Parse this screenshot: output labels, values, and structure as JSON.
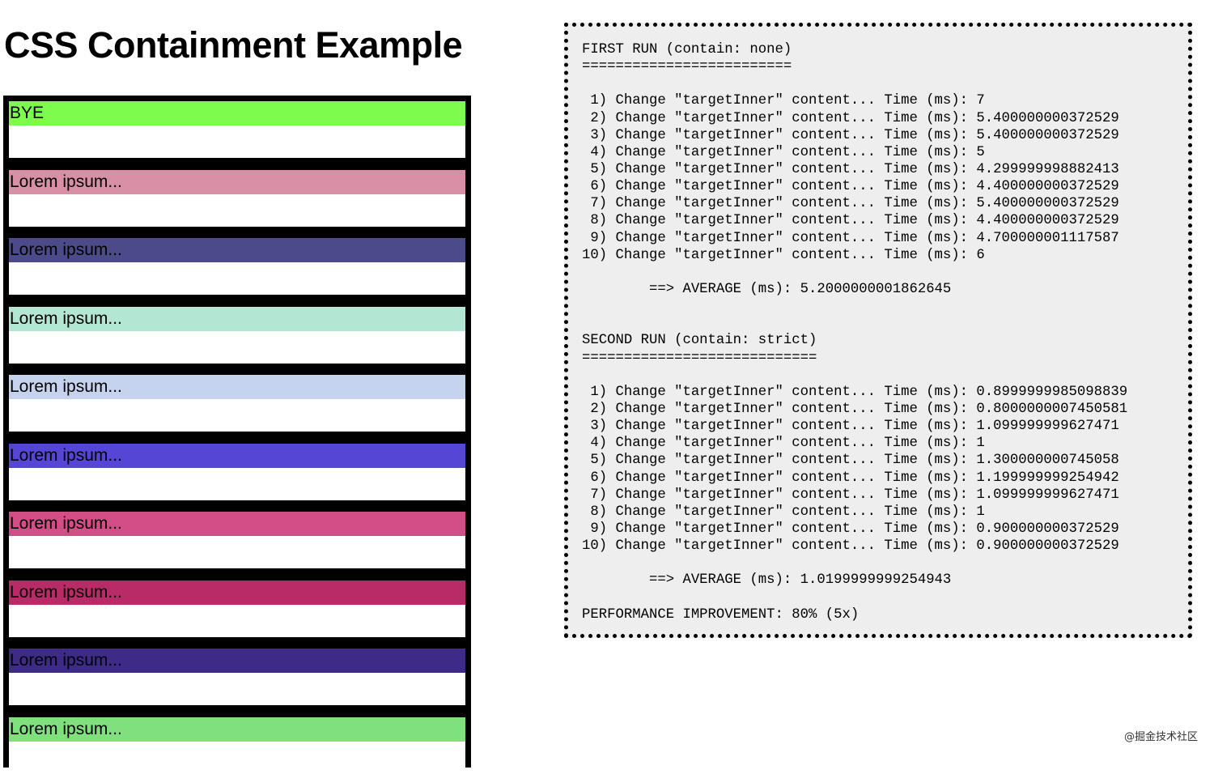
{
  "title": "CSS Containment Example",
  "items": [
    {
      "label": "BYE",
      "color": "#7cfc4c"
    },
    {
      "label": "Lorem ipsum...",
      "color": "#d98fa5"
    },
    {
      "label": "Lorem ipsum...",
      "color": "#4b4b8a"
    },
    {
      "label": "Lorem ipsum...",
      "color": "#b3e6d3"
    },
    {
      "label": "Lorem ipsum...",
      "color": "#c6d3ef"
    },
    {
      "label": "Lorem ipsum...",
      "color": "#5646d6"
    },
    {
      "label": "Lorem ipsum...",
      "color": "#d34d86"
    },
    {
      "label": "Lorem ipsum...",
      "color": "#b82b66"
    },
    {
      "label": "Lorem ipsum...",
      "color": "#3e2a87"
    },
    {
      "label": "Lorem ipsum...",
      "color": "#7fe07d"
    }
  ],
  "log": {
    "lines": [
      "FIRST RUN (contain: none)",
      "=========================",
      "",
      " 1) Change \"targetInner\" content... Time (ms): 7",
      " 2) Change \"targetInner\" content... Time (ms): 5.400000000372529",
      " 3) Change \"targetInner\" content... Time (ms): 5.400000000372529",
      " 4) Change \"targetInner\" content... Time (ms): 5",
      " 5) Change \"targetInner\" content... Time (ms): 4.299999998882413",
      " 6) Change \"targetInner\" content... Time (ms): 4.400000000372529",
      " 7) Change \"targetInner\" content... Time (ms): 5.400000000372529",
      " 8) Change \"targetInner\" content... Time (ms): 4.400000000372529",
      " 9) Change \"targetInner\" content... Time (ms): 4.700000001117587",
      "10) Change \"targetInner\" content... Time (ms): 6",
      "",
      "        ==> AVERAGE (ms): 5.2000000001862645",
      "",
      "",
      "SECOND RUN (contain: strict)",
      "============================",
      "",
      " 1) Change \"targetInner\" content... Time (ms): 0.8999999985098839",
      " 2) Change \"targetInner\" content... Time (ms): 0.8000000007450581",
      " 3) Change \"targetInner\" content... Time (ms): 1.099999999627471",
      " 4) Change \"targetInner\" content... Time (ms): 1",
      " 5) Change \"targetInner\" content... Time (ms): 1.300000000745058",
      " 6) Change \"targetInner\" content... Time (ms): 1.199999999254942",
      " 7) Change \"targetInner\" content... Time (ms): 1.099999999627471",
      " 8) Change \"targetInner\" content... Time (ms): 1",
      " 9) Change \"targetInner\" content... Time (ms): 0.900000000372529",
      "10) Change \"targetInner\" content... Time (ms): 0.900000000372529",
      "",
      "        ==> AVERAGE (ms): 1.0199999999254943",
      "",
      "PERFORMANCE IMPROVEMENT: 80% (5x)"
    ]
  },
  "watermark": "@掘金技术社区"
}
